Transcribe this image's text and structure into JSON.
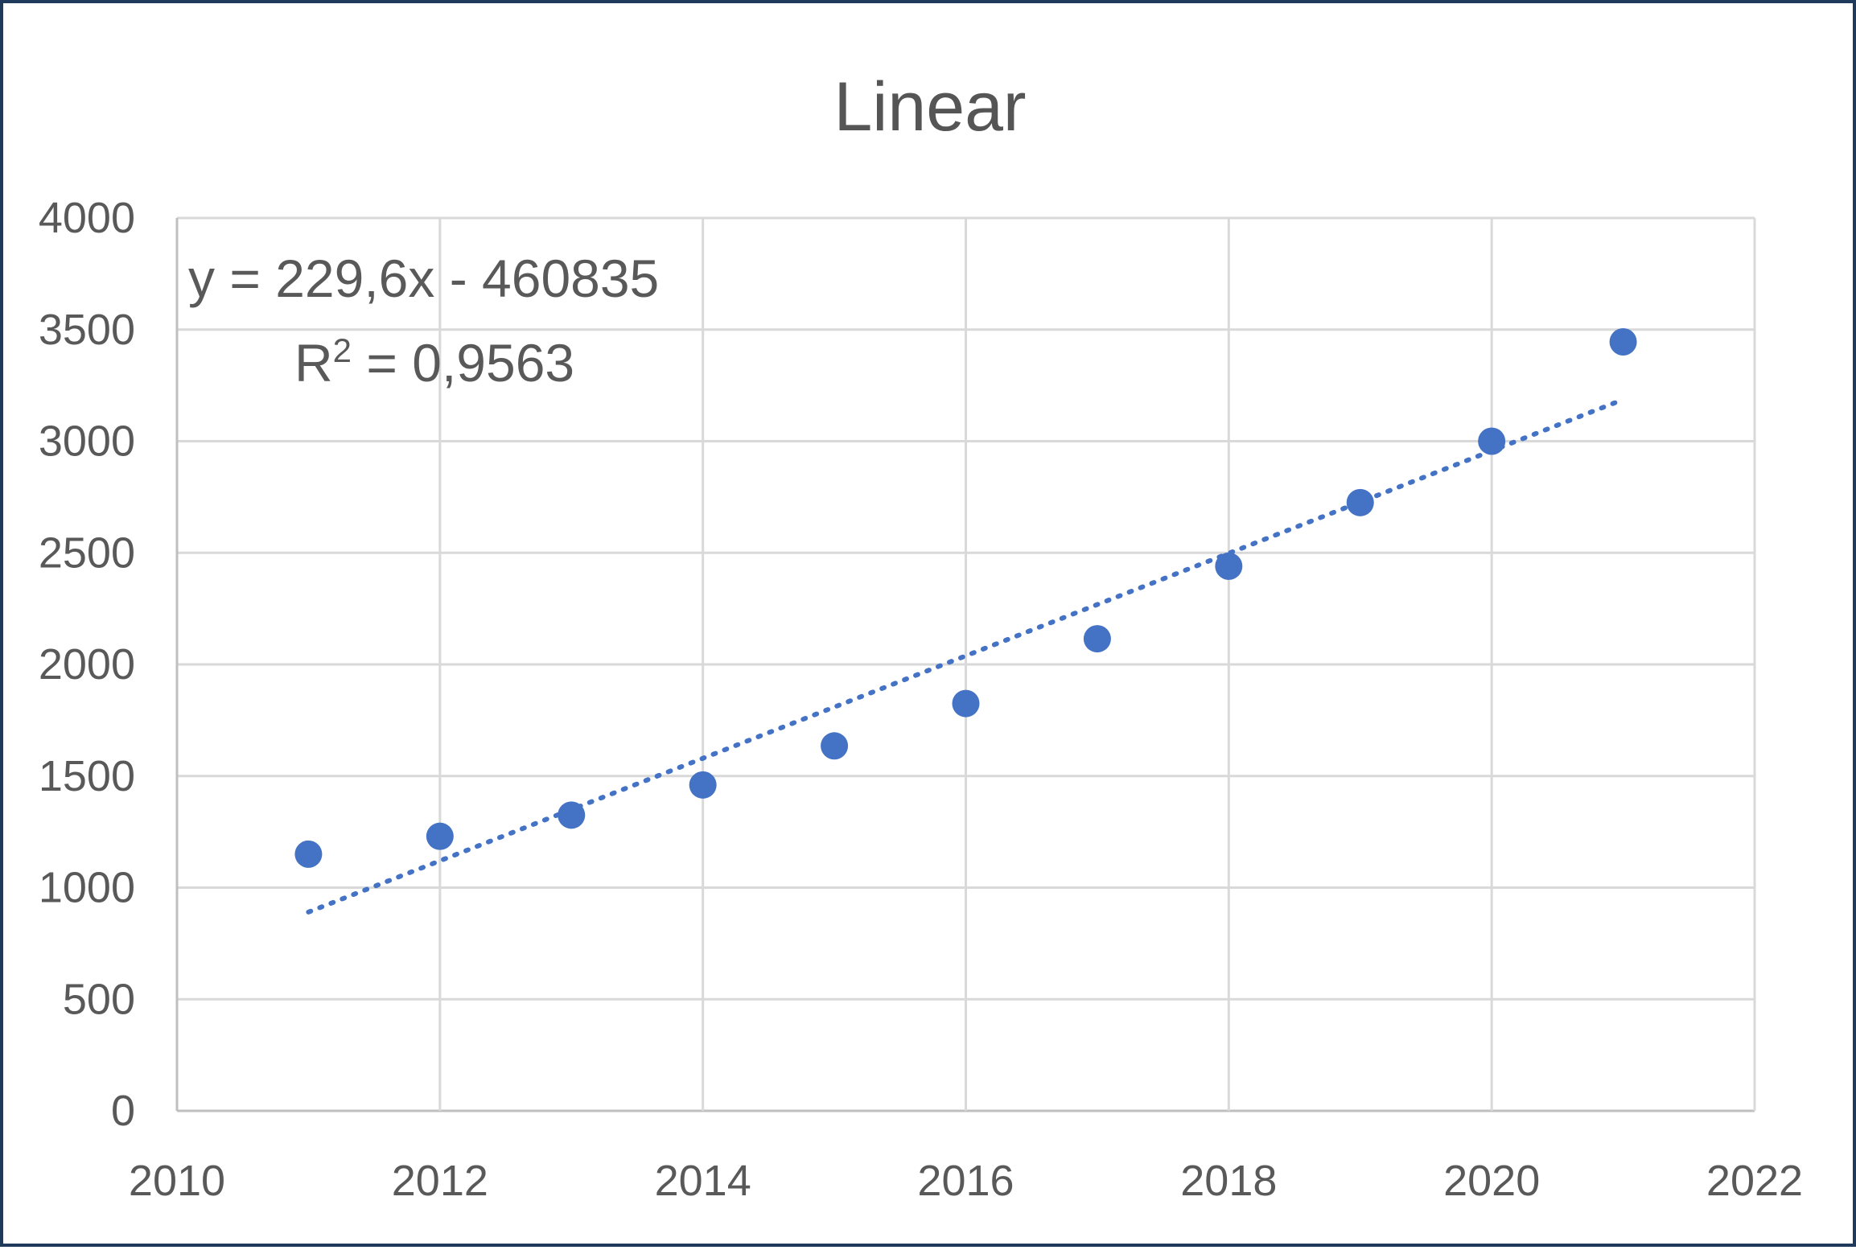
{
  "chart_data": {
    "type": "scatter",
    "title": "Linear",
    "xlabel": "",
    "ylabel": "",
    "xlim": [
      2010,
      2022
    ],
    "ylim": [
      0,
      4000
    ],
    "x_ticks": [
      "2010",
      "2012",
      "2014",
      "2016",
      "2018",
      "2020",
      "2022"
    ],
    "y_ticks": [
      "0",
      "500",
      "1000",
      "1500",
      "2000",
      "2500",
      "3000",
      "3500",
      "4000"
    ],
    "grid": true,
    "legend": "none",
    "series": [
      {
        "x": [
          2011,
          2012,
          2013,
          2014,
          2015,
          2016,
          2017,
          2018,
          2019,
          2020,
          2021
        ],
        "y": [
          1150,
          1230,
          1325,
          1460,
          1635,
          1825,
          2115,
          2440,
          2725,
          3000,
          3445
        ],
        "color": "#4472c4"
      }
    ],
    "trendline": {
      "type": "linear",
      "slope": 229.6,
      "intercept": -460835,
      "x_range": [
        2011,
        2021
      ],
      "color": "#4472c4",
      "style": "dotted"
    },
    "annotations": {
      "equation": "y = 229,6x - 460835",
      "r_squared_label": "R",
      "r_squared_superscript": "2",
      "r_squared_value": " = 0,9563"
    }
  }
}
